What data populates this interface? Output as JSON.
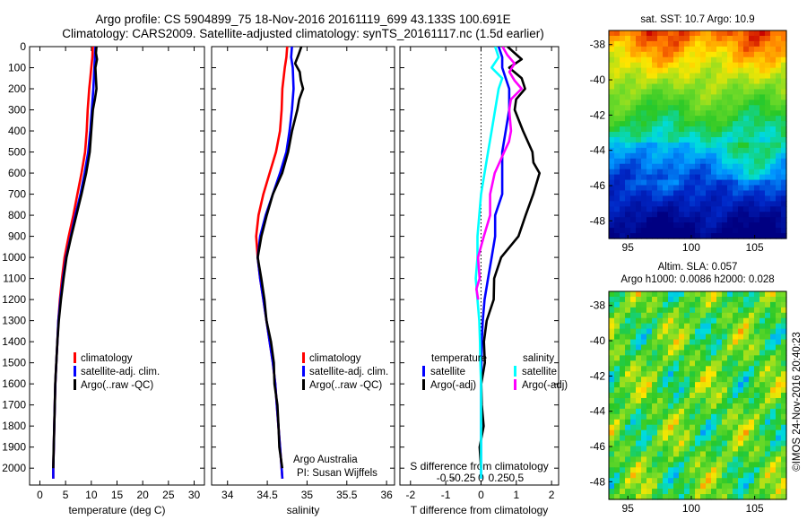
{
  "title": {
    "line1": "Argo profile: CS 5904899_75 18-Nov-2016 20161119_699 43.133S 100.691E",
    "line2": "Climatology: CARS2009. Satellite-adjusted climatology: synTS_20161117.nc (1.5d earlier)"
  },
  "colors": {
    "climatology": "#ff0000",
    "satellite_adj": "#0000ff",
    "argo": "#000000",
    "sal_satellite": "#00ffff",
    "sal_argo": "#ff00ff"
  },
  "chart_data": [
    {
      "type": "line",
      "xlabel": "temperature (deg C)",
      "ylabel": "",
      "xlim": [
        -2,
        32
      ],
      "ylim": [
        2080,
        0
      ],
      "xticks": [
        0,
        5,
        10,
        15,
        20,
        25,
        30
      ],
      "yticks": [
        0,
        100,
        200,
        300,
        400,
        500,
        600,
        700,
        800,
        900,
        1000,
        1100,
        1200,
        1300,
        1400,
        1500,
        1600,
        1700,
        1800,
        1900,
        2000
      ],
      "legend": [
        "climatology",
        "satellite-adj. clim.",
        "Argo(..raw -QC)"
      ],
      "legend_position": "bottom-right",
      "series": [
        {
          "name": "climatology",
          "color": "#ff0000",
          "depth": [
            0,
            50,
            100,
            150,
            200,
            300,
            400,
            500,
            600,
            700,
            800,
            900,
            1000,
            1100,
            1200,
            1300,
            1400,
            1500,
            1600,
            1700,
            1800,
            1900,
            2000,
            2050
          ],
          "values": [
            10.3,
            10.2,
            10.0,
            9.8,
            9.6,
            9.3,
            9.1,
            8.8,
            8.1,
            7.3,
            6.5,
            5.6,
            4.8,
            4.3,
            3.9,
            3.6,
            3.4,
            3.2,
            3.0,
            2.9,
            2.8,
            2.7,
            2.6,
            2.6
          ]
        },
        {
          "name": "satellite-adj. clim.",
          "color": "#0000ff",
          "depth": [
            0,
            50,
            100,
            150,
            200,
            300,
            400,
            500,
            600,
            700,
            800,
            900,
            1000,
            1100,
            1200,
            1300,
            1400,
            1500,
            1600,
            1700,
            1800,
            1900,
            2000,
            2050
          ],
          "values": [
            10.8,
            10.7,
            10.6,
            10.5,
            10.4,
            10.1,
            9.8,
            9.4,
            8.7,
            7.9,
            6.9,
            6.0,
            5.1,
            4.5,
            4.0,
            3.6,
            3.4,
            3.2,
            3.0,
            2.9,
            2.8,
            2.7,
            2.6,
            2.6
          ]
        },
        {
          "name": "Argo(..raw -QC)",
          "color": "#000000",
          "depth": [
            0,
            30,
            60,
            100,
            150,
            200,
            250,
            300,
            400,
            500,
            600,
            700,
            800,
            900,
            1000,
            1100,
            1200,
            1300,
            1400,
            1500,
            1600,
            1700,
            1800,
            1900,
            2000
          ],
          "values": [
            11.0,
            10.9,
            11.1,
            10.8,
            10.9,
            11.0,
            10.7,
            10.3,
            10.0,
            9.7,
            9.0,
            8.1,
            7.1,
            6.1,
            5.2,
            4.6,
            4.1,
            3.7,
            3.4,
            3.2,
            3.0,
            2.9,
            2.8,
            2.7,
            2.6
          ]
        }
      ]
    },
    {
      "type": "line",
      "xlabel": "salinity",
      "ylabel": "",
      "xlim": [
        33.8,
        36.1
      ],
      "ylim": [
        2080,
        0
      ],
      "xticks": [
        34,
        34.5,
        35,
        35.5,
        36
      ],
      "legend": [
        "climatology",
        "satellite-adj. clim.",
        "Argo(..raw -QC)"
      ],
      "legend_position": "bottom-right",
      "annotation": [
        "Argo Australia",
        "PI: Susan Wijffels"
      ],
      "series": [
        {
          "name": "climatology",
          "color": "#ff0000",
          "depth": [
            0,
            50,
            100,
            200,
            300,
            400,
            500,
            600,
            700,
            800,
            900,
            1000,
            1100,
            1200,
            1300,
            1400,
            1500,
            1600,
            1700,
            1800,
            1900,
            2000,
            2050
          ],
          "values": [
            34.75,
            34.74,
            34.72,
            34.69,
            34.68,
            34.66,
            34.61,
            34.53,
            34.45,
            34.39,
            34.36,
            34.38,
            34.41,
            34.45,
            34.49,
            34.53,
            34.57,
            34.6,
            34.62,
            34.64,
            34.66,
            34.68,
            34.69
          ]
        },
        {
          "name": "satellite-adj. clim.",
          "color": "#0000ff",
          "depth": [
            0,
            50,
            100,
            200,
            300,
            400,
            500,
            600,
            700,
            800,
            900,
            1000,
            1100,
            1200,
            1300,
            1400,
            1500,
            1600,
            1700,
            1800,
            1900,
            2000,
            2050
          ],
          "values": [
            34.81,
            34.8,
            34.82,
            34.83,
            34.81,
            34.78,
            34.74,
            34.66,
            34.57,
            34.48,
            34.41,
            34.38,
            34.41,
            34.45,
            34.49,
            34.53,
            34.57,
            34.6,
            34.62,
            34.64,
            34.66,
            34.68,
            34.69
          ]
        },
        {
          "name": "Argo(..raw -QC)",
          "color": "#000000",
          "depth": [
            0,
            40,
            80,
            120,
            160,
            200,
            250,
            300,
            400,
            500,
            600,
            700,
            800,
            900,
            1000,
            1100,
            1200,
            1300,
            1400,
            1500,
            1600,
            1700,
            1800,
            1900,
            2000
          ],
          "values": [
            34.92,
            34.9,
            34.85,
            34.9,
            34.93,
            34.95,
            34.91,
            34.87,
            34.82,
            34.76,
            34.68,
            34.58,
            34.49,
            34.42,
            34.39,
            34.42,
            34.46,
            34.5,
            34.54,
            34.58,
            34.6,
            34.62,
            34.64,
            34.66,
            34.68
          ]
        }
      ]
    },
    {
      "type": "line",
      "xlabel": "T difference from climatology",
      "top_xlabel": "S difference from climatology",
      "ylabel": "",
      "xlim": [
        -2.3,
        2.2
      ],
      "ylim": [
        2080,
        0
      ],
      "xticks": [
        -2,
        -1,
        0,
        1,
        2
      ],
      "top_xticks": [
        {
          "v": -1.0,
          "label": "-0.5"
        },
        {
          "v": -0.5,
          "label": "-0.25"
        },
        {
          "v": 0,
          "label": "0"
        },
        {
          "v": 0.5,
          "label": "0.25"
        },
        {
          "v": 1.0,
          "label": "0.5"
        }
      ],
      "legend_groups": [
        {
          "header": "temperature",
          "items": [
            "satellite",
            "Argo(-adj)"
          ]
        },
        {
          "header": "salinity",
          "items": [
            "satellite",
            "Argo(-adj)"
          ]
        }
      ],
      "legend_position": "bottom-right",
      "series": [
        {
          "name": "satellite",
          "color": "#0000ff",
          "depth": [
            0,
            50,
            100,
            150,
            200,
            300,
            400,
            500,
            600,
            700,
            800,
            900,
            1000,
            1100,
            1200,
            1300,
            1400,
            1500,
            1600,
            1700,
            1800,
            1900,
            2000,
            2050
          ],
          "values": [
            0.5,
            0.6,
            0.6,
            0.7,
            0.8,
            0.8,
            0.7,
            0.6,
            0.6,
            0.6,
            0.4,
            0.4,
            0.3,
            0.2,
            0.1,
            0.05,
            0.02,
            0.01,
            0,
            0,
            0,
            0,
            0,
            0
          ]
        },
        {
          "name": "Argo(-adj)",
          "color": "#000000",
          "depth": [
            0,
            30,
            60,
            100,
            150,
            200,
            250,
            300,
            400,
            500,
            550,
            600,
            700,
            800,
            900,
            1000,
            1100,
            1200,
            1300,
            1400,
            1500,
            1600,
            1700,
            1800,
            1900,
            2000
          ],
          "values": [
            0.7,
            0.9,
            1.1,
            0.8,
            1.1,
            1.3,
            1.0,
            0.9,
            1.2,
            1.5,
            1.5,
            1.6,
            1.5,
            1.3,
            1.0,
            0.6,
            0.4,
            0.3,
            0.2,
            0.1,
            0.05,
            0.05,
            0.03,
            0.02,
            0.01,
            0.0
          ]
        },
        {
          "name": "satellite",
          "color": "#00ffff",
          "depth": [
            0,
            50,
            100,
            150,
            200,
            300,
            400,
            500,
            600,
            700,
            800,
            900,
            1000,
            1100,
            1200,
            1300,
            1400,
            1500,
            1600,
            1700,
            1800,
            1900,
            2000,
            2050
          ],
          "values": [
            0.4,
            0.5,
            0.3,
            0.6,
            0.5,
            0.4,
            0.3,
            0.2,
            0.1,
            0.0,
            -0.05,
            -0.1,
            -0.1,
            -0.15,
            -0.1,
            -0.05,
            -0.03,
            -0.02,
            0,
            0,
            0,
            0,
            0,
            0
          ]
        },
        {
          "name": "Argo(-adj)",
          "color": "#ff00ff",
          "depth": [
            0,
            40,
            80,
            120,
            160,
            200,
            250,
            300,
            400,
            450,
            500,
            600,
            700,
            800,
            900,
            1000,
            1100,
            1150,
            1200
          ],
          "values": [
            0.6,
            0.8,
            0.9,
            0.8,
            1.0,
            1.1,
            0.9,
            0.8,
            0.9,
            0.8,
            0.6,
            0.4,
            0.3,
            0.2,
            0.1,
            -0.05,
            -0.1,
            -0.1,
            -0.05
          ]
        }
      ]
    },
    {
      "type": "heatmap",
      "title": "sat. SST: 10.7  Argo: 10.9",
      "xlim": [
        93.5,
        107.5
      ],
      "ylim": [
        -49,
        -37.2
      ],
      "xticks": [
        95,
        100,
        105
      ],
      "yticks": [
        -38,
        -40,
        -42,
        -44,
        -46,
        -48
      ],
      "argo_marker": {
        "lon": 100.691,
        "lat": -43.133
      }
    },
    {
      "type": "heatmap",
      "title": [
        "Altim. SLA: 0.057",
        "Argo h1000: 0.0086 h2000: 0.028"
      ],
      "xlim": [
        93.5,
        107.5
      ],
      "ylim": [
        -49,
        -37.2
      ],
      "xticks": [
        95,
        100,
        105
      ],
      "yticks": [
        -38,
        -40,
        -42,
        -44,
        -46,
        -48
      ]
    }
  ],
  "side_label": "©IMOS 24-Nov-2016 20:40:23"
}
